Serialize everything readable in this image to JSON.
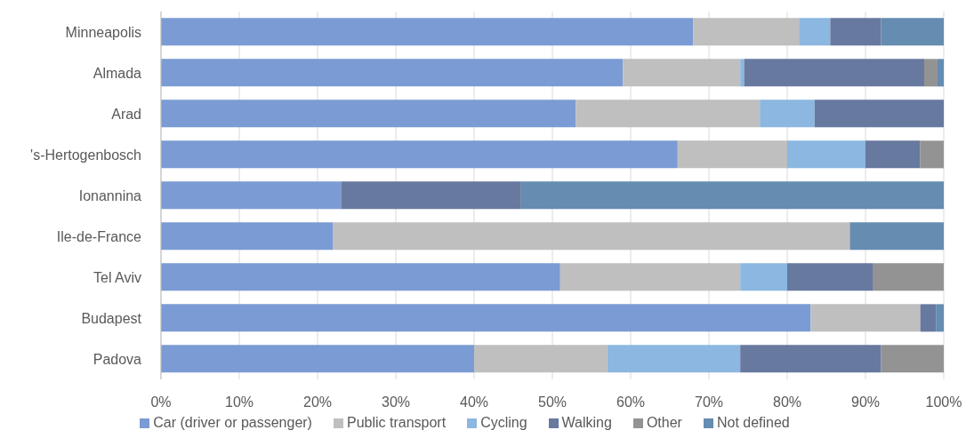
{
  "chart_data": {
    "type": "bar",
    "orientation": "horizontal",
    "stacked": true,
    "categories": [
      "Minneapolis",
      "Almada",
      "Arad",
      "'s-Hertogenbosch",
      "Ionannina",
      "Ile-de-France",
      "Tel Aviv",
      "Budapest",
      "Padova"
    ],
    "series": [
      {
        "name": "Car (driver or passenger)",
        "color": "#7b9bd4",
        "values": [
          68,
          59,
          53,
          66,
          23,
          22,
          51,
          83,
          40
        ]
      },
      {
        "name": "Public transport",
        "color": "#bfbfbf",
        "values": [
          13.5,
          15,
          23.5,
          14,
          0,
          66,
          23,
          14,
          17
        ]
      },
      {
        "name": "Cycling",
        "color": "#8bb7e0",
        "values": [
          4,
          0.5,
          7,
          10,
          0,
          0,
          6,
          0,
          17
        ]
      },
      {
        "name": "Walking",
        "color": "#68799f",
        "values": [
          6.5,
          23,
          16.5,
          7,
          23,
          0,
          11,
          2,
          18
        ]
      },
      {
        "name": "Other",
        "color": "#939393",
        "values": [
          0,
          1.7,
          0,
          3,
          0,
          0,
          9,
          0,
          8
        ]
      },
      {
        "name": "Not defined",
        "color": "#658cb1",
        "values": [
          8,
          0.8,
          0,
          0,
          54,
          12,
          0,
          1,
          0
        ]
      }
    ],
    "xlim": [
      0,
      100
    ],
    "xticks": [
      {
        "value": 0,
        "label": "0%"
      },
      {
        "value": 10,
        "label": "10%"
      },
      {
        "value": 20,
        "label": "20%"
      },
      {
        "value": 30,
        "label": "30%"
      },
      {
        "value": 40,
        "label": "40%"
      },
      {
        "value": 50,
        "label": "50%"
      },
      {
        "value": 60,
        "label": "60%"
      },
      {
        "value": 70,
        "label": "70%"
      },
      {
        "value": 80,
        "label": "80%"
      },
      {
        "value": 90,
        "label": "90%"
      },
      {
        "value": 100,
        "label": "100%"
      }
    ],
    "grid": "x",
    "legend": "bottom"
  }
}
